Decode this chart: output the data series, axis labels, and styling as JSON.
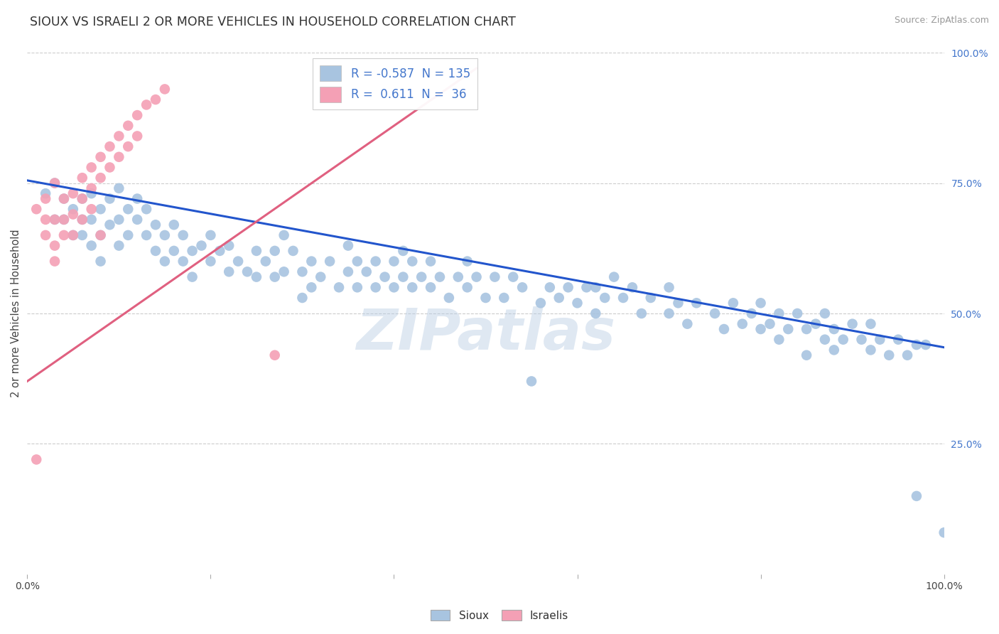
{
  "title": "SIOUX VS ISRAELI 2 OR MORE VEHICLES IN HOUSEHOLD CORRELATION CHART",
  "source": "Source: ZipAtlas.com",
  "ylabel": "2 or more Vehicles in Household",
  "watermark": "ZIPatlas",
  "legend_sioux_r": "-0.587",
  "legend_sioux_n": "135",
  "legend_israeli_r": "0.611",
  "legend_israeli_n": "36",
  "xlim": [
    0.0,
    1.0
  ],
  "ylim": [
    0.0,
    1.0
  ],
  "sioux_color": "#a8c4e0",
  "israeli_color": "#f4a0b5",
  "sioux_line_color": "#2255cc",
  "israeli_line_color": "#e06080",
  "background_color": "#ffffff",
  "grid_color": "#cccccc",
  "title_color": "#333333",
  "right_tick_color": "#4477cc",
  "ytick_positions_right": [
    1.0,
    0.75,
    0.5,
    0.25
  ],
  "ytick_labels_right": [
    "100.0%",
    "75.0%",
    "50.0%",
    "25.0%"
  ],
  "sioux_line_x0": 0.0,
  "sioux_line_y0": 0.755,
  "sioux_line_x1": 1.0,
  "sioux_line_y1": 0.435,
  "israeli_line_x0": 0.0,
  "israeli_line_y0": 0.37,
  "israeli_line_x1": 0.49,
  "israeli_line_y1": 0.97,
  "sioux_scatter": [
    [
      0.02,
      0.73
    ],
    [
      0.03,
      0.68
    ],
    [
      0.03,
      0.75
    ],
    [
      0.04,
      0.72
    ],
    [
      0.04,
      0.68
    ],
    [
      0.05,
      0.7
    ],
    [
      0.05,
      0.65
    ],
    [
      0.06,
      0.72
    ],
    [
      0.06,
      0.68
    ],
    [
      0.06,
      0.65
    ],
    [
      0.07,
      0.73
    ],
    [
      0.07,
      0.68
    ],
    [
      0.07,
      0.63
    ],
    [
      0.08,
      0.7
    ],
    [
      0.08,
      0.65
    ],
    [
      0.08,
      0.6
    ],
    [
      0.09,
      0.72
    ],
    [
      0.09,
      0.67
    ],
    [
      0.1,
      0.74
    ],
    [
      0.1,
      0.68
    ],
    [
      0.1,
      0.63
    ],
    [
      0.11,
      0.7
    ],
    [
      0.11,
      0.65
    ],
    [
      0.12,
      0.68
    ],
    [
      0.12,
      0.72
    ],
    [
      0.13,
      0.65
    ],
    [
      0.13,
      0.7
    ],
    [
      0.14,
      0.67
    ],
    [
      0.14,
      0.62
    ],
    [
      0.15,
      0.65
    ],
    [
      0.15,
      0.6
    ],
    [
      0.16,
      0.67
    ],
    [
      0.16,
      0.62
    ],
    [
      0.17,
      0.65
    ],
    [
      0.17,
      0.6
    ],
    [
      0.18,
      0.62
    ],
    [
      0.18,
      0.57
    ],
    [
      0.19,
      0.63
    ],
    [
      0.2,
      0.65
    ],
    [
      0.2,
      0.6
    ],
    [
      0.21,
      0.62
    ],
    [
      0.22,
      0.58
    ],
    [
      0.22,
      0.63
    ],
    [
      0.23,
      0.6
    ],
    [
      0.24,
      0.58
    ],
    [
      0.25,
      0.62
    ],
    [
      0.25,
      0.57
    ],
    [
      0.26,
      0.6
    ],
    [
      0.27,
      0.57
    ],
    [
      0.27,
      0.62
    ],
    [
      0.28,
      0.65
    ],
    [
      0.28,
      0.58
    ],
    [
      0.29,
      0.62
    ],
    [
      0.3,
      0.58
    ],
    [
      0.3,
      0.53
    ],
    [
      0.31,
      0.6
    ],
    [
      0.31,
      0.55
    ],
    [
      0.32,
      0.57
    ],
    [
      0.33,
      0.6
    ],
    [
      0.34,
      0.55
    ],
    [
      0.35,
      0.58
    ],
    [
      0.35,
      0.63
    ],
    [
      0.36,
      0.6
    ],
    [
      0.36,
      0.55
    ],
    [
      0.37,
      0.58
    ],
    [
      0.38,
      0.55
    ],
    [
      0.38,
      0.6
    ],
    [
      0.39,
      0.57
    ],
    [
      0.4,
      0.6
    ],
    [
      0.4,
      0.55
    ],
    [
      0.41,
      0.57
    ],
    [
      0.41,
      0.62
    ],
    [
      0.42,
      0.55
    ],
    [
      0.42,
      0.6
    ],
    [
      0.43,
      0.57
    ],
    [
      0.44,
      0.6
    ],
    [
      0.44,
      0.55
    ],
    [
      0.45,
      0.57
    ],
    [
      0.46,
      0.53
    ],
    [
      0.47,
      0.57
    ],
    [
      0.48,
      0.55
    ],
    [
      0.48,
      0.6
    ],
    [
      0.49,
      0.57
    ],
    [
      0.5,
      0.53
    ],
    [
      0.51,
      0.57
    ],
    [
      0.52,
      0.53
    ],
    [
      0.53,
      0.57
    ],
    [
      0.54,
      0.55
    ],
    [
      0.55,
      0.37
    ],
    [
      0.56,
      0.52
    ],
    [
      0.57,
      0.55
    ],
    [
      0.58,
      0.53
    ],
    [
      0.59,
      0.55
    ],
    [
      0.6,
      0.52
    ],
    [
      0.61,
      0.55
    ],
    [
      0.62,
      0.5
    ],
    [
      0.62,
      0.55
    ],
    [
      0.63,
      0.53
    ],
    [
      0.64,
      0.57
    ],
    [
      0.65,
      0.53
    ],
    [
      0.66,
      0.55
    ],
    [
      0.67,
      0.5
    ],
    [
      0.68,
      0.53
    ],
    [
      0.7,
      0.55
    ],
    [
      0.7,
      0.5
    ],
    [
      0.71,
      0.52
    ],
    [
      0.72,
      0.48
    ],
    [
      0.73,
      0.52
    ],
    [
      0.75,
      0.5
    ],
    [
      0.76,
      0.47
    ],
    [
      0.77,
      0.52
    ],
    [
      0.78,
      0.48
    ],
    [
      0.79,
      0.5
    ],
    [
      0.8,
      0.47
    ],
    [
      0.8,
      0.52
    ],
    [
      0.81,
      0.48
    ],
    [
      0.82,
      0.5
    ],
    [
      0.82,
      0.45
    ],
    [
      0.83,
      0.47
    ],
    [
      0.84,
      0.5
    ],
    [
      0.85,
      0.47
    ],
    [
      0.85,
      0.42
    ],
    [
      0.86,
      0.48
    ],
    [
      0.87,
      0.45
    ],
    [
      0.87,
      0.5
    ],
    [
      0.88,
      0.47
    ],
    [
      0.88,
      0.43
    ],
    [
      0.89,
      0.45
    ],
    [
      0.9,
      0.48
    ],
    [
      0.91,
      0.45
    ],
    [
      0.92,
      0.48
    ],
    [
      0.92,
      0.43
    ],
    [
      0.93,
      0.45
    ],
    [
      0.94,
      0.42
    ],
    [
      0.95,
      0.45
    ],
    [
      0.96,
      0.42
    ],
    [
      0.97,
      0.44
    ],
    [
      0.97,
      0.15
    ],
    [
      0.98,
      0.44
    ],
    [
      1.0,
      0.08
    ]
  ],
  "israeli_scatter": [
    [
      0.01,
      0.22
    ],
    [
      0.01,
      0.7
    ],
    [
      0.02,
      0.72
    ],
    [
      0.02,
      0.68
    ],
    [
      0.02,
      0.65
    ],
    [
      0.03,
      0.75
    ],
    [
      0.03,
      0.68
    ],
    [
      0.03,
      0.63
    ],
    [
      0.03,
      0.6
    ],
    [
      0.04,
      0.72
    ],
    [
      0.04,
      0.68
    ],
    [
      0.04,
      0.65
    ],
    [
      0.05,
      0.73
    ],
    [
      0.05,
      0.69
    ],
    [
      0.05,
      0.65
    ],
    [
      0.06,
      0.76
    ],
    [
      0.06,
      0.72
    ],
    [
      0.06,
      0.68
    ],
    [
      0.07,
      0.78
    ],
    [
      0.07,
      0.74
    ],
    [
      0.07,
      0.7
    ],
    [
      0.08,
      0.8
    ],
    [
      0.08,
      0.76
    ],
    [
      0.08,
      0.65
    ],
    [
      0.09,
      0.82
    ],
    [
      0.09,
      0.78
    ],
    [
      0.1,
      0.84
    ],
    [
      0.1,
      0.8
    ],
    [
      0.11,
      0.86
    ],
    [
      0.11,
      0.82
    ],
    [
      0.12,
      0.88
    ],
    [
      0.12,
      0.84
    ],
    [
      0.13,
      0.9
    ],
    [
      0.14,
      0.91
    ],
    [
      0.15,
      0.93
    ],
    [
      0.27,
      0.42
    ]
  ]
}
